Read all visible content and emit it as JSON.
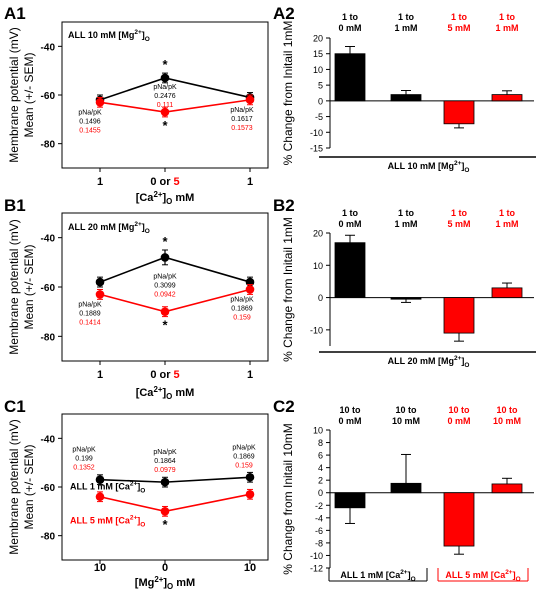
{
  "panels": {
    "A1": "A1",
    "A2": "A2",
    "B1": "B1",
    "B2": "B2",
    "C1": "C1",
    "C2": "C2"
  },
  "colors": {
    "black": "#000000",
    "red": "#ff0000"
  },
  "chart_data": [
    {
      "id": "A1",
      "type": "line",
      "ylabel_line1": "Membrane potential (mV)",
      "ylabel_line2": "Mean (+/- SEM)",
      "ylim": [
        -90,
        -30
      ],
      "yticks": [
        -80,
        -60,
        -40
      ],
      "categories": [
        "1",
        "0",
        "1"
      ],
      "cat_labels": [
        {
          "parts": [
            {
              "t": "1",
              "c": "black"
            }
          ]
        },
        {
          "parts": [
            {
              "t": "0 or ",
              "c": "black"
            },
            {
              "t": "5",
              "c": "red"
            }
          ]
        },
        {
          "parts": [
            {
              "t": "1",
              "c": "black"
            }
          ]
        }
      ],
      "xlabel_pre": "[Ca",
      "xlabel_sup": "2+",
      "xlabel_mid": "]",
      "xlabel_sub": "O",
      "xlabel_post": " mM",
      "note_pre": "ALL 10 mM [Mg",
      "note_sup": "2+",
      "note_mid": "]",
      "note_sub": "O",
      "series": [
        {
          "name": "",
          "color": "black",
          "values": [
            -62,
            -53,
            -61
          ],
          "errors": [
            2,
            2,
            2
          ]
        },
        {
          "name": "",
          "color": "red",
          "values": [
            -63,
            -67,
            -62
          ],
          "errors": [
            2,
            2,
            2
          ]
        }
      ],
      "stars": [
        {
          "cat": 1,
          "series": 0,
          "pos": "above"
        },
        {
          "cat": 1,
          "series": 1,
          "pos": "below"
        }
      ],
      "ratio_title": "pNa/pK",
      "ratios": [
        {
          "cat": 0,
          "black": "0.1496",
          "red": "0.1455",
          "place": "below"
        },
        {
          "cat": 1,
          "black": "0.2476",
          "red": "0.111",
          "place": "between"
        },
        {
          "cat": 2,
          "black": "0.1617",
          "red": "0.1573",
          "place": "below"
        }
      ]
    },
    {
      "id": "B1",
      "type": "line",
      "ylabel_line1": "Membrane potential (mV)",
      "ylabel_line2": "Mean (+/- SEM)",
      "ylim": [
        -90,
        -30
      ],
      "yticks": [
        -80,
        -60,
        -40
      ],
      "categories": [
        "1",
        "0",
        "1"
      ],
      "cat_labels": [
        {
          "parts": [
            {
              "t": "1",
              "c": "black"
            }
          ]
        },
        {
          "parts": [
            {
              "t": "0 or ",
              "c": "black"
            },
            {
              "t": "5",
              "c": "red"
            }
          ]
        },
        {
          "parts": [
            {
              "t": "1",
              "c": "black"
            }
          ]
        }
      ],
      "xlabel_pre": "[Ca",
      "xlabel_sup": "2+",
      "xlabel_mid": "]",
      "xlabel_sub": "O",
      "xlabel_post": " mM",
      "note_pre": "ALL 20 mM [Mg",
      "note_sup": "2+",
      "note_mid": "]",
      "note_sub": "O",
      "series": [
        {
          "name": "",
          "color": "black",
          "values": [
            -58,
            -48,
            -58
          ],
          "errors": [
            2,
            3,
            2
          ]
        },
        {
          "name": "",
          "color": "red",
          "values": [
            -63,
            -70,
            -61
          ],
          "errors": [
            2,
            2,
            2
          ]
        }
      ],
      "stars": [
        {
          "cat": 1,
          "series": 0,
          "pos": "above"
        },
        {
          "cat": 1,
          "series": 1,
          "pos": "below"
        }
      ],
      "ratio_title": "pNa/pK",
      "ratios": [
        {
          "cat": 0,
          "black": "0.1889",
          "red": "0.1414",
          "place": "below"
        },
        {
          "cat": 1,
          "black": "0.3099",
          "red": "0.0942",
          "place": "between"
        },
        {
          "cat": 2,
          "black": "0.1869",
          "red": "0.159",
          "place": "below"
        }
      ]
    },
    {
      "id": "C1",
      "type": "line",
      "ylabel_line1": "Membrane potential (mV)",
      "ylabel_line2": "Mean (+/- SEM)",
      "ylim": [
        -90,
        -30
      ],
      "yticks": [
        -80,
        -60,
        -40
      ],
      "categories": [
        "10",
        "0",
        "10"
      ],
      "cat_labels": [
        {
          "parts": [
            {
              "t": "10",
              "c": "black"
            }
          ]
        },
        {
          "parts": [
            {
              "t": "0",
              "c": "black"
            }
          ]
        },
        {
          "parts": [
            {
              "t": "10",
              "c": "black"
            }
          ]
        }
      ],
      "xlabel_pre": "[Mg",
      "xlabel_sup": "2+",
      "xlabel_mid": "]",
      "xlabel_sub": "O",
      "xlabel_post": " mM",
      "series": [
        {
          "name": "ALL 1 mM [Ca2+]O",
          "color": "black",
          "values": [
            -57,
            -58,
            -56
          ],
          "errors": [
            2,
            2,
            2
          ]
        },
        {
          "name": "ALL 5 mM [Ca2+]O",
          "color": "red",
          "values": [
            -64,
            -70,
            -63
          ],
          "errors": [
            2,
            2,
            2
          ]
        }
      ],
      "legend": [
        {
          "color": "black",
          "pre": "ALL 1 mM [Ca",
          "sup": "2+",
          "mid": "]",
          "sub": "O"
        },
        {
          "color": "red",
          "pre": "ALL 5 mM [Ca",
          "sup": "2+",
          "mid": "]",
          "sub": "O"
        }
      ],
      "stars": [
        {
          "cat": 1,
          "series": 1,
          "pos": "below"
        }
      ],
      "ratio_title": "pNa/pK",
      "ratios": [
        {
          "cat": 0,
          "black": "0.199",
          "red": "0.1352",
          "place": "above"
        },
        {
          "cat": 1,
          "black": "0.1864",
          "red": "0.0979",
          "place": "above"
        },
        {
          "cat": 2,
          "black": "0.1869",
          "red": "0.159",
          "place": "above"
        }
      ]
    },
    {
      "id": "A2",
      "type": "bar",
      "ylabel": "% Change from Initail 1mM",
      "ylim": [
        -15,
        20
      ],
      "yticks": [
        -15,
        -10,
        -5,
        0,
        5,
        10,
        15,
        20
      ],
      "bars": [
        {
          "label1": "1 to",
          "label2": "0 mM",
          "color": "black",
          "value": 15,
          "error": 2.3
        },
        {
          "label1": "1 to",
          "label2": "1 mM",
          "color": "black",
          "value": 2,
          "error": 1.3
        },
        {
          "label1": "1 to",
          "label2": "5 mM",
          "color": "red",
          "value": -7.3,
          "error": 1.3
        },
        {
          "label1": "1 to",
          "label2": "1 mM",
          "color": "red",
          "value": 2,
          "error": 1.2
        }
      ],
      "groups": [
        {
          "from": 0,
          "to": 3,
          "color": "black",
          "pre": "ALL 10 mM [Mg",
          "sup": "2+",
          "mid": "]",
          "sub": "O"
        }
      ]
    },
    {
      "id": "B2",
      "type": "bar",
      "ylabel": "% Change from Initail 1mM",
      "ylim": [
        -15,
        20
      ],
      "yticks": [
        -10,
        0,
        10,
        20
      ],
      "bars": [
        {
          "label1": "1 to",
          "label2": "0 mM",
          "color": "black",
          "value": 17,
          "error": 2.3
        },
        {
          "label1": "1 to",
          "label2": "1 mM",
          "color": "black",
          "value": -0.5,
          "error": 1
        },
        {
          "label1": "1 to",
          "label2": "5 mM",
          "color": "red",
          "value": -11,
          "error": 2.5
        },
        {
          "label1": "1 to",
          "label2": "1 mM",
          "color": "red",
          "value": 3,
          "error": 1.5
        }
      ],
      "groups": [
        {
          "from": 0,
          "to": 3,
          "color": "black",
          "pre": "ALL 20 mM [Mg",
          "sup": "2+",
          "mid": "]",
          "sub": "O"
        }
      ]
    },
    {
      "id": "C2",
      "type": "bar",
      "ylabel": "% Change from Initail 10mM",
      "ylim": [
        -12,
        10
      ],
      "yticks": [
        -12,
        -10,
        -8,
        -6,
        -4,
        -2,
        0,
        2,
        4,
        6,
        8,
        10
      ],
      "bars": [
        {
          "label1": "10 to",
          "label2": "0 mM",
          "color": "black",
          "value": -2.4,
          "error": 2.5
        },
        {
          "label1": "10 to",
          "label2": "10 mM",
          "color": "black",
          "value": 1.5,
          "error": 4.6
        },
        {
          "label1": "10 to",
          "label2": "0 mM",
          "color": "red",
          "value": -8.5,
          "error": 1.3
        },
        {
          "label1": "10 to",
          "label2": "10 mM",
          "color": "red",
          "value": 1.4,
          "error": 0.9
        }
      ],
      "groups": [
        {
          "from": 0,
          "to": 1,
          "color": "black",
          "pre": "ALL 1 mM [Ca",
          "sup": "2+",
          "mid": "]",
          "sub": "O"
        },
        {
          "from": 2,
          "to": 3,
          "color": "red",
          "pre": "ALL 5 mM [Ca",
          "sup": "2+",
          "mid": "]",
          "sub": "O"
        }
      ]
    }
  ]
}
